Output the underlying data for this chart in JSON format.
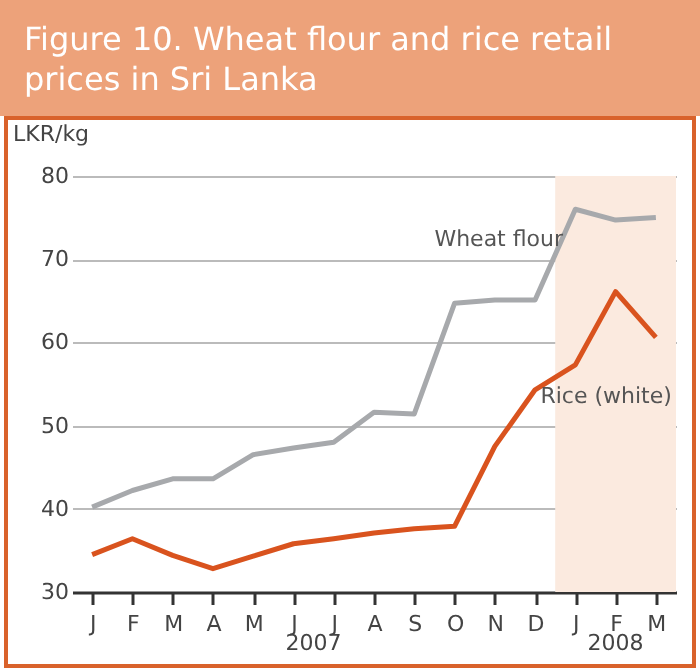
{
  "chart_data": {
    "type": "line",
    "title": "Figure 10. Wheat flour and rice retail prices in Sri Lanka",
    "ylabel": "LKR/kg",
    "categories": [
      "J",
      "F",
      "M",
      "A",
      "M",
      "J",
      "J",
      "A",
      "S",
      "O",
      "N",
      "D",
      "J",
      "F",
      "M"
    ],
    "series": [
      {
        "name": "Wheat flour",
        "color": "#a7a9ac",
        "values": [
          40.2,
          42.2,
          43.6,
          43.6,
          46.5,
          47.3,
          48.0,
          51.6,
          51.4,
          64.7,
          65.1,
          65.1,
          76.0,
          74.7,
          75.0
        ]
      },
      {
        "name": "Rice (white)",
        "color": "#d9531e",
        "values": [
          34.5,
          36.4,
          34.4,
          32.8,
          34.3,
          35.8,
          36.4,
          37.1,
          37.6,
          37.9,
          47.5,
          54.3,
          57.3,
          66.1,
          60.6
        ]
      }
    ],
    "ylim": [
      30,
      80
    ],
    "yticks": [
      30,
      40,
      50,
      60,
      70,
      80
    ],
    "grid": "y",
    "annotations": [
      "2007",
      "2008"
    ],
    "legend": false,
    "marker": "none",
    "line_style": "solid"
  }
}
